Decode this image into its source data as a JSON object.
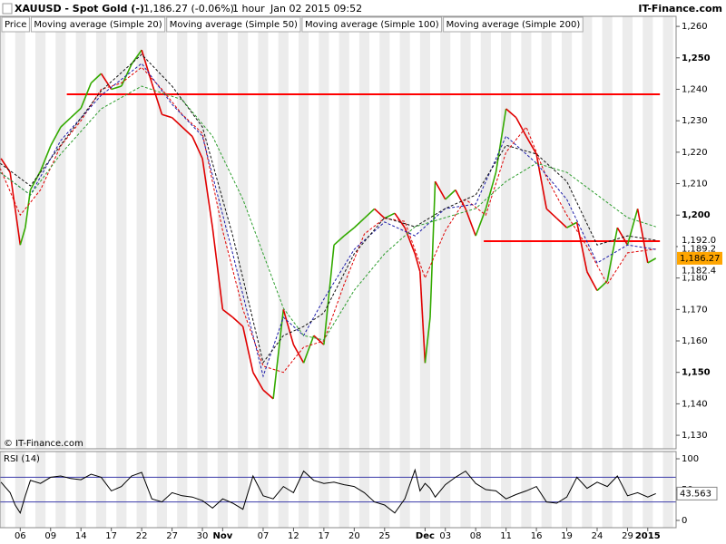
{
  "header": {
    "symbol": "XAUUSD - Spot Gold (-)",
    "quote": "1,186.27 (-0.06%)",
    "interval": "1 hour",
    "datetime": "Jan 02 2015 09:52",
    "site": "IT-Finance.com"
  },
  "chart_data": [
    {
      "type": "line",
      "credit": "© IT-Finance.com",
      "xlim": [
        -2,
        64.8
      ],
      "ylim": [
        1125.7,
        1263.2
      ],
      "yticks": [
        {
          "value": 1130,
          "label": "1,130"
        },
        {
          "value": 1140,
          "label": "1,140"
        },
        {
          "value": 1150,
          "label": "1,150"
        },
        {
          "value": 1160,
          "label": "1,160"
        },
        {
          "value": 1170,
          "label": "1,170"
        },
        {
          "value": 1180,
          "label": "1,180"
        },
        {
          "value": 1190,
          "label": "1,190"
        },
        {
          "value": 1200,
          "label": "1,200"
        },
        {
          "value": 1210,
          "label": "1,210"
        },
        {
          "value": 1220,
          "label": "1,220"
        },
        {
          "value": 1230,
          "label": "1,230"
        },
        {
          "value": 1240,
          "label": "1,240"
        },
        {
          "value": 1250,
          "label": "1,250"
        },
        {
          "value": 1260,
          "label": "1,260"
        }
      ],
      "series": [
        {
          "name": "Price",
          "up_color": "#33aa00",
          "down_color": "#e00000",
          "x": [
            -1.9,
            -1,
            -0.5,
            0,
            0.5,
            1,
            2,
            3,
            4,
            5,
            6,
            7,
            8,
            9,
            10,
            11,
            12,
            13,
            14,
            15,
            16,
            17,
            18,
            19,
            20,
            21,
            22,
            23,
            24,
            25,
            26,
            27,
            28,
            29,
            30,
            31,
            32,
            33,
            34,
            35,
            36,
            37,
            38,
            39,
            39.5,
            40,
            40.5,
            41,
            42,
            43,
            44,
            45,
            46,
            47,
            48,
            49,
            50,
            51,
            52,
            53,
            54,
            55,
            56,
            57,
            58,
            59,
            60,
            61,
            62,
            62.8
          ],
          "values": [
            1218,
            1213.6,
            1202,
            1190.5,
            1196,
            1208,
            1214,
            1222,
            1228,
            1231,
            1234,
            1242,
            1245,
            1240,
            1241,
            1248,
            1252.5,
            1242,
            1232,
            1231,
            1228,
            1225,
            1218,
            1196,
            1170,
            1167.5,
            1164.6,
            1150,
            1144.4,
            1141.6,
            1170,
            1158.8,
            1153,
            1161.7,
            1158.8,
            1190.5,
            1193.4,
            1196,
            1199,
            1202,
            1199,
            1200.6,
            1196,
            1187.7,
            1182,
            1153,
            1167.5,
            1210.7,
            1205,
            1208,
            1202,
            1193.4,
            1202,
            1213.6,
            1233.8,
            1231,
            1225,
            1219.4,
            1202,
            1199,
            1196,
            1197.7,
            1182,
            1176,
            1179,
            1196,
            1190.5,
            1202,
            1184.8,
            1186.27
          ]
        },
        {
          "name": "Moving average (Simple 20)",
          "color": "#e00000",
          "dashed": true,
          "x": [
            -2,
            0,
            2,
            4,
            6,
            8,
            10,
            12,
            14,
            16,
            18,
            20,
            22,
            24,
            26,
            28,
            30,
            32,
            34,
            36,
            38,
            40,
            42,
            44,
            46,
            48,
            50,
            52,
            54,
            56,
            58,
            60,
            62.8
          ],
          "values": [
            1215,
            1200,
            1208,
            1222,
            1230,
            1240,
            1242,
            1247,
            1240,
            1232,
            1226,
            1195,
            1170,
            1152,
            1150,
            1158,
            1160,
            1178,
            1194,
            1199,
            1198,
            1180,
            1195,
            1205,
            1200,
            1220,
            1228,
            1212,
            1200,
            1190,
            1178,
            1188,
            1189.2
          ]
        },
        {
          "name": "Moving average (Simple 50)",
          "color": "#1a1aa8",
          "dashed": true,
          "x": [
            -2,
            1,
            4,
            8,
            12,
            15,
            18,
            21,
            24,
            26,
            28,
            30,
            33,
            36,
            39,
            42,
            45,
            48,
            51,
            54,
            57,
            60,
            62.8
          ],
          "values": [
            1213.6,
            1206.4,
            1223.7,
            1238.1,
            1248.2,
            1235.2,
            1225.1,
            1187.7,
            1148.8,
            1167.5,
            1161.7,
            1173.3,
            1189.1,
            1197.8,
            1193.4,
            1202.1,
            1203.5,
            1225.1,
            1216.5,
            1205,
            1184.8,
            1190.5,
            1189.1
          ]
        },
        {
          "name": "Moving average (Simple 100)",
          "color": "#111111",
          "dashed": true,
          "x": [
            -2,
            1,
            4,
            8,
            12,
            15,
            18,
            21,
            24,
            26,
            28,
            30,
            33,
            36,
            39,
            42,
            45,
            48,
            51,
            54,
            57,
            60,
            62.8
          ],
          "values": [
            1216.5,
            1209.3,
            1222.2,
            1239.5,
            1251.1,
            1241,
            1228,
            1193.4,
            1153.1,
            1161.7,
            1164.6,
            1168.9,
            1187.7,
            1199.2,
            1196.3,
            1202.1,
            1206.4,
            1222.2,
            1219.4,
            1210.7,
            1190.5,
            1193.4,
            1192
          ]
        },
        {
          "name": "Moving average (Simple 200)",
          "color": "#2e9e2e",
          "dashed": true,
          "x": [
            -2,
            1,
            4,
            8,
            12,
            16,
            19,
            22,
            24,
            26,
            28,
            30,
            33,
            36,
            39,
            42,
            45,
            48,
            51,
            54,
            57,
            60,
            62.8
          ],
          "values": [
            1213.6,
            1206.4,
            1219.4,
            1233.8,
            1241,
            1236.7,
            1225.1,
            1205,
            1187.7,
            1170.4,
            1161.7,
            1160.3,
            1176.1,
            1187.7,
            1196.3,
            1199.2,
            1202.1,
            1210.7,
            1216.5,
            1213.6,
            1206.4,
            1199.2,
            1196.3
          ]
        }
      ],
      "hlines": [
        {
          "value": 1238.4,
          "x": [
            4.6,
            63.2
          ],
          "color": "#ff0000"
        },
        {
          "value": 1191.7,
          "x": [
            45.8,
            63.2
          ],
          "color": "#ff0000"
        }
      ],
      "levels": [
        {
          "value": 1192.0,
          "label": "1,192.0",
          "color": "#dd0000"
        },
        {
          "value": 1189.2,
          "label": "1,189.2",
          "color": "#33aa33"
        },
        {
          "value": 1182.4,
          "label": "1,182.4",
          "color": "#33aa33"
        }
      ],
      "last": {
        "value": 1186.27,
        "label": "1,186.27",
        "color": "#ffa500"
      }
    },
    {
      "type": "line",
      "title": "RSI (14)",
      "color": "#000000",
      "xlim": [
        -2,
        64.8
      ],
      "ylim": [
        -11.8,
        111.8
      ],
      "yticks": [
        0,
        50,
        100
      ],
      "levels": [
        30,
        70
      ],
      "level_color": "#3a3aa8",
      "x": [
        -1.9,
        -1,
        -0.5,
        0,
        0.5,
        1,
        2,
        3,
        4,
        5,
        6,
        7,
        8,
        9,
        10,
        11,
        12,
        13,
        14,
        15,
        16,
        17,
        18,
        19,
        20,
        21,
        22,
        23,
        24,
        25,
        26,
        27,
        28,
        29,
        30,
        31,
        32,
        33,
        34,
        35,
        36,
        37,
        38,
        39,
        39.5,
        40,
        40.5,
        41,
        42,
        43,
        44,
        45,
        46,
        47,
        48,
        49,
        50,
        51,
        52,
        53,
        54,
        55,
        56,
        57,
        58,
        59,
        60,
        61,
        62,
        62.8
      ],
      "values": [
        62,
        45,
        25,
        12,
        40,
        65,
        60,
        70,
        72,
        68,
        66,
        75,
        70,
        48,
        55,
        72,
        78,
        35,
        30,
        45,
        40,
        38,
        32,
        20,
        35,
        28,
        18,
        72,
        40,
        35,
        55,
        45,
        80,
        65,
        60,
        62,
        58,
        55,
        45,
        30,
        25,
        12,
        35,
        82,
        48,
        60,
        52,
        38,
        58,
        70,
        80,
        60,
        50,
        48,
        35,
        42,
        48,
        55,
        30,
        28,
        38,
        70,
        52,
        62,
        55,
        72,
        40,
        45,
        38,
        43.563
      ],
      "last": {
        "value": 43.563,
        "label": "43.563"
      },
      "xticks": [
        {
          "value": 0,
          "label": "06"
        },
        {
          "value": 3,
          "label": "09"
        },
        {
          "value": 6,
          "label": "14"
        },
        {
          "value": 9,
          "label": "17"
        },
        {
          "value": 12,
          "label": "22"
        },
        {
          "value": 15,
          "label": "27"
        },
        {
          "value": 18,
          "label": "30"
        },
        {
          "value": 20,
          "label": "Nov"
        },
        {
          "value": 24,
          "label": "07"
        },
        {
          "value": 27,
          "label": "12"
        },
        {
          "value": 30,
          "label": "17"
        },
        {
          "value": 33,
          "label": "20"
        },
        {
          "value": 36,
          "label": "25"
        },
        {
          "value": 40,
          "label": "Dec"
        },
        {
          "value": 42,
          "label": "03"
        },
        {
          "value": 45,
          "label": "08"
        },
        {
          "value": 48,
          "label": "11"
        },
        {
          "value": 51,
          "label": "16"
        },
        {
          "value": 54,
          "label": "19"
        },
        {
          "value": 57,
          "label": "24"
        },
        {
          "value": 60,
          "label": "29"
        },
        {
          "value": 62,
          "label": "2015"
        }
      ]
    }
  ]
}
